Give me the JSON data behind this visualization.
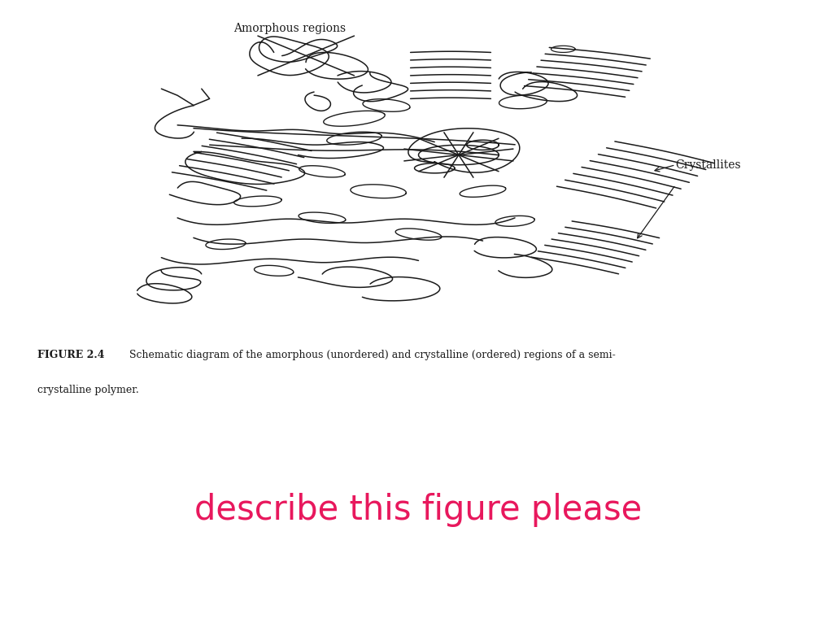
{
  "figure_label": "FIGURE 2.4",
  "figure_caption_part1": "Schematic diagram of the amorphous (unordered) and crystalline (ordered) regions of a semi-",
  "figure_caption_part2": "crystalline polymer.",
  "label_amorphous": "Amorphous regions",
  "label_crystallites": "Crystallites",
  "query_text": "describe this figure please",
  "query_color": "#e8185d",
  "background_color": "#ffffff",
  "line_color": "#1a1a1a",
  "text_color": "#1a1a1a",
  "fig_width": 10.29,
  "fig_height": 7.82,
  "dpi": 100
}
